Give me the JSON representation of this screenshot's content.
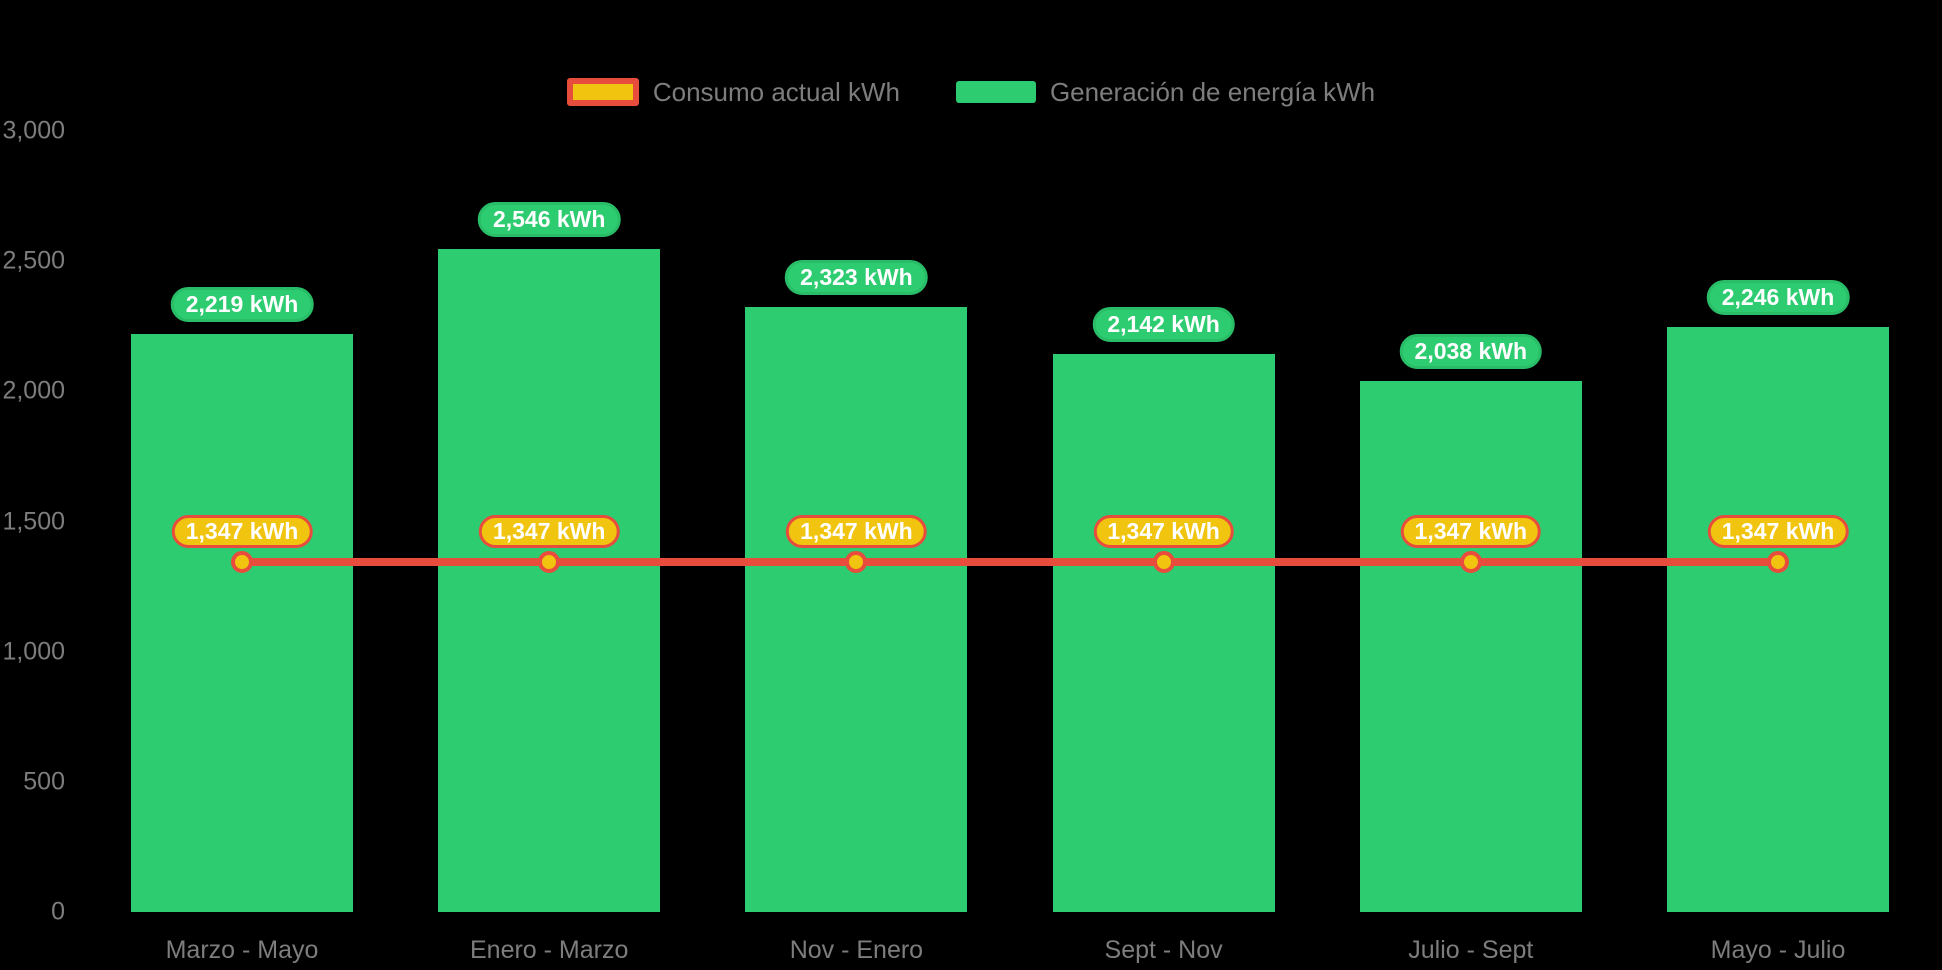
{
  "colors": {
    "background": "#000000",
    "bar_green": "#2ECC71",
    "bar_label_border": "#29BD68",
    "line_red": "#E74C3C",
    "point_yellow": "#F1C40F",
    "axis_text": "#7D7D7D",
    "label_text": "#FFFFFF"
  },
  "legend": {
    "items": [
      {
        "label": "Consumo actual kWh",
        "series": "line",
        "swatch_fill": "#F1C40F",
        "swatch_border": "#E74C3C"
      },
      {
        "label": "Generación de energía kWh",
        "series": "bar",
        "swatch_fill": "#2ECC71"
      }
    ]
  },
  "chart_data": {
    "type": "bar",
    "title": "",
    "xlabel": "",
    "ylabel": "",
    "categories": [
      "Marzo - Mayo",
      "Enero - Marzo",
      "Nov - Enero",
      "Sept - Nov",
      "Julio - Sept",
      "Mayo - Julio"
    ],
    "series": [
      {
        "name": "Generación de energía kWh",
        "type": "bar",
        "color": "#2ECC71",
        "values": [
          2219,
          2546,
          2323,
          2142,
          2038,
          2246
        ],
        "value_labels": [
          "2,219 kWh",
          "2,546 kWh",
          "2,323 kWh",
          "2,142 kWh",
          "2,038 kWh",
          "2,246 kWh"
        ]
      },
      {
        "name": "Consumo actual kWh",
        "type": "line",
        "color": "#E74C3C",
        "point_color": "#F1C40F",
        "values": [
          1347,
          1347,
          1347,
          1347,
          1347,
          1347
        ],
        "value_labels": [
          "1,347 kWh",
          "1,347 kWh",
          "1,347 kWh",
          "1,347 kWh",
          "1,347 kWh",
          "1,347 kWh"
        ]
      }
    ],
    "ylim": [
      0,
      3000
    ],
    "ytick_values": [
      0,
      500,
      1000,
      1500,
      2000,
      2500,
      3000
    ],
    "ytick_labels": [
      "0",
      "500",
      "1,000",
      "1,500",
      "2,000",
      "2,500",
      "3,000"
    ],
    "grid": false,
    "legend_position": "top"
  }
}
